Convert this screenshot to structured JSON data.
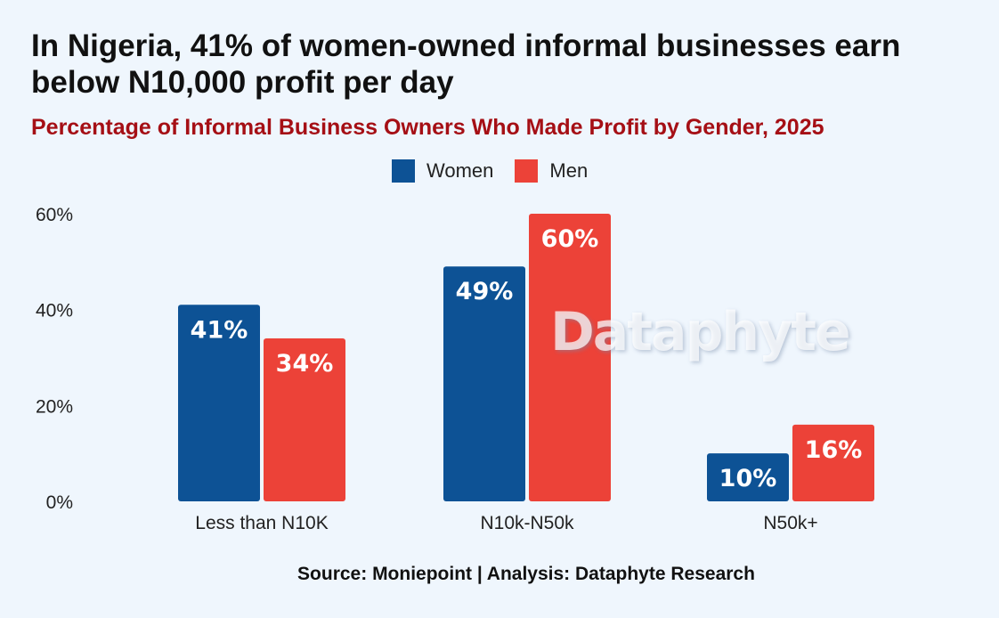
{
  "header": {
    "title": "In Nigeria, 41% of women-owned informal businesses earn below N10,000 profit per day",
    "subtitle": "Percentage of Informal Business Owners Who Made Profit by Gender, 2025"
  },
  "footer": {
    "source": "Source: Moniepoint | Analysis: Dataphyte Research"
  },
  "watermark": {
    "text": "Dataphyte"
  },
  "colors": {
    "women": "#0d5295",
    "men": "#ec4238"
  },
  "chart_data": {
    "type": "bar",
    "title": "Percentage of Informal Business Owners Who Made Profit by Gender, 2025",
    "categories": [
      "Less than N10K",
      "N10k-N50k",
      "N50k+"
    ],
    "series": [
      {
        "name": "Women",
        "values": [
          41,
          49,
          10
        ],
        "labels": [
          "41%",
          "49%",
          "10%"
        ]
      },
      {
        "name": "Men",
        "values": [
          34,
          60,
          16
        ],
        "labels": [
          "34%",
          "60%",
          "16%"
        ]
      }
    ],
    "ylim": [
      0,
      60
    ],
    "yticks": [
      0,
      20,
      40,
      60
    ],
    "ytick_labels": [
      "0%",
      "20%",
      "40%",
      "60%"
    ],
    "grid": false,
    "legend_position": "top-center"
  }
}
